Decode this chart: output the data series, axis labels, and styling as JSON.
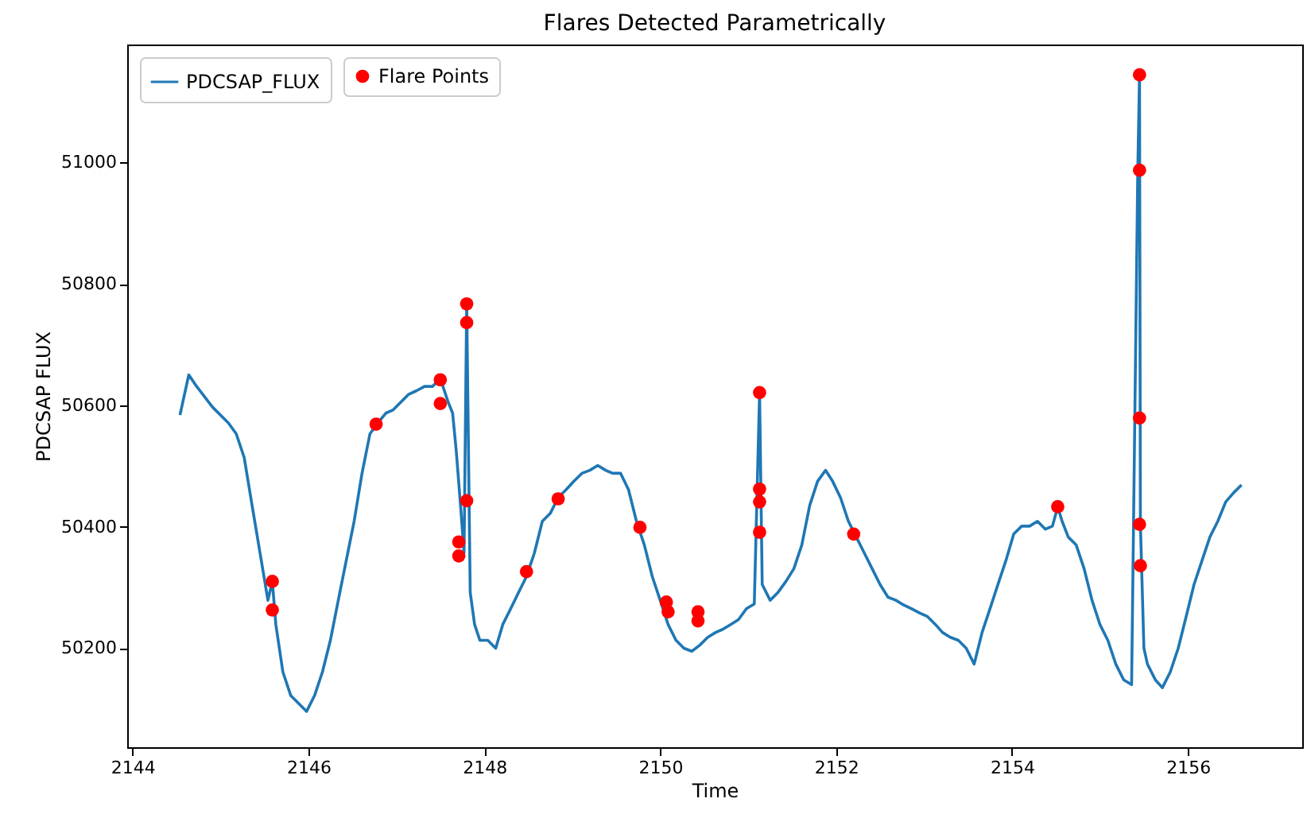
{
  "chart_data": {
    "type": "line",
    "title": "Flares Detected Parametrically",
    "xlabel": "Time",
    "ylabel": "PDCSAP FLUX",
    "xlim": [
      2143.94,
      2157.3
    ],
    "xticks": [
      2144,
      2146,
      2148,
      2150,
      2152,
      2154,
      2156
    ],
    "ylim": [
      50037,
      51194
    ],
    "yticks": [
      50200,
      50400,
      50600,
      50800,
      51000
    ],
    "grid": false,
    "legend": "top left",
    "series": [
      {
        "name": "PDCSAP_FLUX",
        "color": "#1f77b4",
        "line_style": "solid",
        "x": [
          2144.54,
          2144.64,
          2144.73,
          2144.91,
          2145.09,
          2145.18,
          2145.27,
          2145.36,
          2145.45,
          2145.54,
          2145.59,
          2145.63,
          2145.71,
          2145.8,
          2145.89,
          2145.98,
          2146.07,
          2146.16,
          2146.25,
          2146.34,
          2146.43,
          2146.52,
          2146.61,
          2146.7,
          2146.79,
          2146.88,
          2146.96,
          2147.05,
          2147.14,
          2147.23,
          2147.32,
          2147.41,
          2147.5,
          2147.59,
          2147.64,
          2147.68,
          2147.73,
          2147.77,
          2147.8,
          2147.84,
          2147.89,
          2147.95,
          2148.04,
          2148.13,
          2148.21,
          2148.3,
          2148.39,
          2148.48,
          2148.57,
          2148.66,
          2148.75,
          2148.84,
          2148.93,
          2149.02,
          2149.11,
          2149.2,
          2149.29,
          2149.38,
          2149.46,
          2149.55,
          2149.64,
          2149.73,
          2149.82,
          2149.91,
          2150,
          2150.09,
          2150.18,
          2150.27,
          2150.36,
          2150.45,
          2150.54,
          2150.63,
          2150.71,
          2150.8,
          2150.89,
          2150.98,
          2151.07,
          2151.13,
          2151.16,
          2151.25,
          2151.34,
          2151.43,
          2151.52,
          2151.61,
          2151.7,
          2151.79,
          2151.88,
          2151.96,
          2152.05,
          2152.14,
          2152.23,
          2152.32,
          2152.41,
          2152.5,
          2152.59,
          2152.68,
          2152.77,
          2152.86,
          2152.95,
          2153.04,
          2153.13,
          2153.21,
          2153.3,
          2153.39,
          2153.48,
          2153.57,
          2153.66,
          2153.75,
          2153.84,
          2153.93,
          2154.02,
          2154.11,
          2154.2,
          2154.29,
          2154.38,
          2154.46,
          2154.52,
          2154.57,
          2154.64,
          2154.73,
          2154.82,
          2154.91,
          2155,
          2155.09,
          2155.18,
          2155.27,
          2155.36,
          2155.43,
          2155.45,
          2155.46,
          2155.5,
          2155.54,
          2155.63,
          2155.71,
          2155.8,
          2155.89,
          2155.98,
          2156.07,
          2156.16,
          2156.25,
          2156.34,
          2156.43,
          2156.52,
          2156.61
        ],
        "values": [
          50584,
          50650,
          50631,
          50597,
          50571,
          50553,
          50514,
          50435,
          50357,
          50279,
          50310,
          50239,
          50161,
          50122,
          50109,
          50096,
          50122,
          50161,
          50213,
          50279,
          50344,
          50409,
          50488,
          50553,
          50571,
          50587,
          50592,
          50605,
          50618,
          50624,
          50631,
          50631,
          50644,
          50605,
          50587,
          50527,
          50435,
          50357,
          50767,
          50292,
          50239,
          50213,
          50213,
          50200,
          50239,
          50265,
          50292,
          50318,
          50357,
          50409,
          50422,
          50448,
          50461,
          50475,
          50488,
          50493,
          50501,
          50493,
          50488,
          50488,
          50461,
          50409,
          50370,
          50318,
          50279,
          50239,
          50213,
          50200,
          50195,
          50205,
          50218,
          50226,
          50231,
          50239,
          50247,
          50265,
          50273,
          50621,
          50305,
          50279,
          50292,
          50310,
          50331,
          50370,
          50435,
          50475,
          50493,
          50475,
          50448,
          50409,
          50383,
          50357,
          50331,
          50305,
          50284,
          50279,
          50271,
          50265,
          50258,
          50252,
          50239,
          50226,
          50218,
          50213,
          50200,
          50174,
          50226,
          50265,
          50305,
          50344,
          50388,
          50401,
          50401,
          50409,
          50396,
          50401,
          50433,
          50409,
          50383,
          50370,
          50331,
          50279,
          50239,
          50213,
          50174,
          50148,
          50140,
          50984,
          51144,
          50404,
          50200,
          50174,
          50148,
          50135,
          50161,
          50200,
          50252,
          50305,
          50344,
          50383,
          50409,
          50441,
          50456,
          50469
        ]
      },
      {
        "name": "Flare Points",
        "type": "scatter",
        "color": "#ff0000",
        "marker": "circle",
        "x": [
          2145.59,
          2145.59,
          2146.77,
          2147.5,
          2147.5,
          2147.71,
          2147.71,
          2147.8,
          2147.8,
          2147.8,
          2148.48,
          2148.84,
          2149.77,
          2150.07,
          2150.09,
          2150.43,
          2150.43,
          2151.13,
          2151.13,
          2151.13,
          2151.13,
          2152.2,
          2154.52,
          2155.45,
          2155.45,
          2155.45,
          2155.45,
          2155.46
        ],
        "values": [
          50310,
          50263,
          50569,
          50642,
          50603,
          50375,
          50352,
          50443,
          50736,
          50767,
          50326,
          50446,
          50399,
          50276,
          50260,
          50260,
          50245,
          50621,
          50462,
          50441,
          50391,
          50388,
          50433,
          51144,
          50987,
          50579,
          50404,
          50336
        ]
      }
    ]
  }
}
